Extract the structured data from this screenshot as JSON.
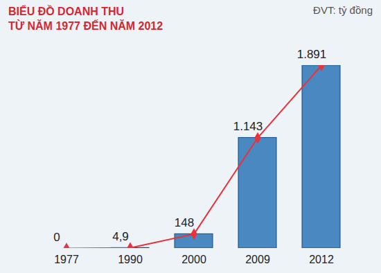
{
  "chart_data": {
    "type": "bar",
    "title": [
      "BIỂU ĐỒ DOANH THU",
      "TỪ NĂM 1977 ĐẾN NĂM 2012"
    ],
    "subtitle": "ĐVT: tỷ đồng",
    "categories": [
      "1977",
      "1990",
      "2000",
      "2009",
      "2012"
    ],
    "series": [
      {
        "type": "bar",
        "color": "#1f6db3",
        "values": [
          0,
          4.9,
          148,
          1143,
          1891
        ],
        "value_labels": [
          "0",
          "4,9",
          "148",
          "1.143",
          "1.891"
        ]
      },
      {
        "type": "line",
        "color": "#e8323c",
        "marker": "diamond",
        "values": [
          0,
          4.9,
          148,
          1143,
          1891
        ]
      }
    ],
    "data_labels": true,
    "tick_labels": "x",
    "grid": false
  }
}
